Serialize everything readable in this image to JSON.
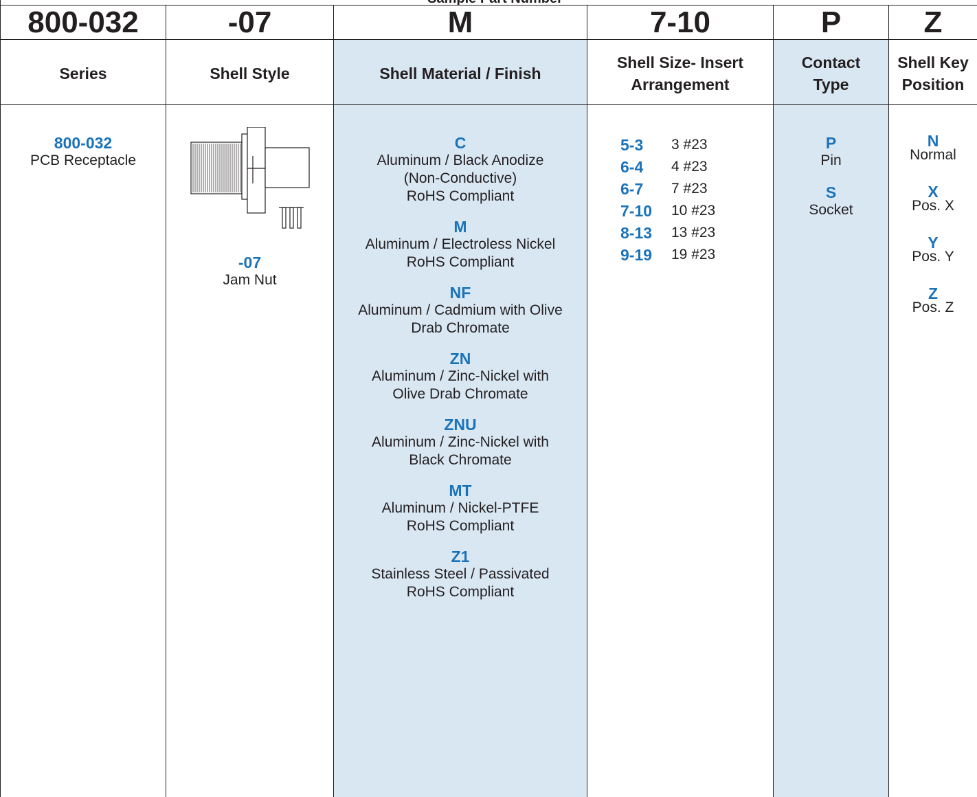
{
  "title": "Sample Part Number",
  "columns": {
    "series": {
      "code": "800-032",
      "header": "Series",
      "option_code": "800-032",
      "option_label": "PCB Receptacle"
    },
    "shell_style": {
      "code": "-07",
      "header": "Shell Style",
      "option_code": "-07",
      "option_label": "Jam Nut",
      "image": "jam-nut-receptacle-drawing"
    },
    "material": {
      "code": "M",
      "header": "Shell Material / Finish",
      "options": [
        {
          "code": "C",
          "lines": [
            "Aluminum / Black Anodize",
            "(Non-Conductive)",
            "RoHS Compliant"
          ]
        },
        {
          "code": "M",
          "lines": [
            "Aluminum / Electroless Nickel",
            "RoHS Compliant"
          ]
        },
        {
          "code": "NF",
          "lines": [
            "Aluminum / Cadmium with Olive",
            "Drab Chromate"
          ]
        },
        {
          "code": "ZN",
          "lines": [
            "Aluminum / Zinc-Nickel with",
            "Olive Drab Chromate"
          ]
        },
        {
          "code": "ZNU",
          "lines": [
            "Aluminum / Zinc-Nickel with",
            "Black Chromate"
          ]
        },
        {
          "code": "MT",
          "lines": [
            "Aluminum / Nickel-PTFE",
            "RoHS Compliant"
          ]
        },
        {
          "code": "Z1",
          "lines": [
            "Stainless Steel / Passivated",
            "RoHS Compliant"
          ]
        }
      ]
    },
    "size": {
      "code": "7-10",
      "header_lines": [
        "Shell Size- Insert",
        "Arrangement"
      ],
      "options": [
        {
          "code": "5-3",
          "desc": "3 #23"
        },
        {
          "code": "6-4",
          "desc": "4 #23"
        },
        {
          "code": "6-7",
          "desc": "7 #23"
        },
        {
          "code": "7-10",
          "desc": "10 #23"
        },
        {
          "code": "8-13",
          "desc": "13 #23"
        },
        {
          "code": "9-19",
          "desc": "19 #23"
        }
      ]
    },
    "contact": {
      "code": "P",
      "header_lines": [
        "Contact",
        "Type"
      ],
      "options": [
        {
          "code": "P",
          "label": "Pin"
        },
        {
          "code": "S",
          "label": "Socket"
        }
      ]
    },
    "key": {
      "code": "Z",
      "header_lines": [
        "Shell Key",
        "Position"
      ],
      "options": [
        {
          "code": "N",
          "label": "Normal"
        },
        {
          "code": "X",
          "label": "Pos. X"
        },
        {
          "code": "Y",
          "label": "Pos. Y"
        },
        {
          "code": "Z",
          "label": "Pos. Z"
        }
      ]
    }
  },
  "colors": {
    "accent_blue": "#1a73b9",
    "shade": "#d9e7f3",
    "text": "#231f20"
  }
}
